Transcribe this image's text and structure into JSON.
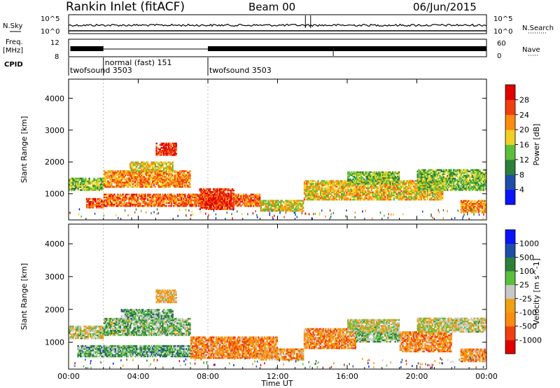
{
  "header": {
    "station": "Rankin Inlet (fitACF)",
    "beam": "Beam 00",
    "date": "06/Jun/2015"
  },
  "top_panels": {
    "nsky_label": "N.Sky",
    "nsky_scale_hi": "10^5",
    "nsky_scale_lo": "10^0",
    "nsearch_label": "N.Search",
    "nsearch_scale_hi": "10^5",
    "nsearch_scale_lo": "10^0",
    "freq_label": "Freq.",
    "freq_unit": "[MHz]",
    "freq_ticks": [
      "12",
      "8"
    ],
    "nave_label": "Nave",
    "nave_ticks": [
      "60",
      "0"
    ],
    "cpid_label": "CPID"
  },
  "cpid": [
    {
      "name": "twofsound 3503",
      "start": "00:00"
    },
    {
      "name": "normal (fast) 151",
      "start": "02:00"
    },
    {
      "name": "twofsound 3503",
      "start": "08:00"
    }
  ],
  "colors": {
    "power": [
      "#0a14ff",
      "#1f4ea8",
      "#2d7f3a",
      "#5bbf3b",
      "#f0d020",
      "#ff8a10",
      "#f04010",
      "#e00000"
    ],
    "velocity": [
      "#e00000",
      "#f04010",
      "#ff8a10",
      "#f0a010",
      "#c8c8c8",
      "#5bbf3b",
      "#2d7f3a",
      "#1f4ea8",
      "#0a14ff"
    ],
    "velocity_gray": "#c8c8c8"
  },
  "chart_data": [
    {
      "type": "heatmap",
      "name": "power",
      "ylabel": "Slant Range [km]",
      "xlabel": "Time UT",
      "xlim": [
        "00:00",
        "24:00"
      ],
      "ylim": [
        180,
        4600
      ],
      "x_ticks": [
        "00:00",
        "04:00",
        "08:00",
        "12:00",
        "16:00",
        "20:00",
        "00:00"
      ],
      "y_ticks": [
        "1000",
        "2000",
        "3000",
        "4000"
      ],
      "colorbar": {
        "label": "Power [dB]",
        "range": [
          0,
          32
        ],
        "ticks": [
          "4",
          "8",
          "12",
          "16",
          "20",
          "24",
          "28"
        ]
      },
      "bands": [
        {
          "t0": 0.0,
          "t1": 2.0,
          "r0": 1100,
          "r1": 1500,
          "level": 0.45
        },
        {
          "t0": 2.0,
          "t1": 7.0,
          "r0": 1200,
          "r1": 1700,
          "level": 0.7
        },
        {
          "t0": 3.5,
          "t1": 6.0,
          "r0": 1700,
          "r1": 2000,
          "level": 0.55
        },
        {
          "t0": 5.0,
          "t1": 6.2,
          "r0": 2200,
          "r1": 2600,
          "level": 0.85
        },
        {
          "t0": 1.0,
          "t1": 2.0,
          "r0": 550,
          "r1": 850,
          "level": 0.8
        },
        {
          "t0": 2.0,
          "t1": 11.0,
          "r0": 600,
          "r1": 1000,
          "level": 0.75
        },
        {
          "t0": 7.5,
          "t1": 9.5,
          "r0": 500,
          "r1": 1150,
          "level": 0.85
        },
        {
          "t0": 11.0,
          "t1": 13.5,
          "r0": 450,
          "r1": 800,
          "level": 0.55
        },
        {
          "t0": 13.5,
          "t1": 21.5,
          "r0": 800,
          "r1": 1400,
          "level": 0.6
        },
        {
          "t0": 16.0,
          "t1": 19.0,
          "r0": 1300,
          "r1": 1700,
          "level": 0.45
        },
        {
          "t0": 20.0,
          "t1": 24.0,
          "r0": 1100,
          "r1": 1750,
          "level": 0.45
        },
        {
          "t0": 22.5,
          "t1": 24.0,
          "r0": 400,
          "r1": 800,
          "level": 0.7
        }
      ]
    },
    {
      "type": "heatmap",
      "name": "velocity",
      "ylabel": "Slant Range [km]",
      "xlabel": "Time UT",
      "xlim": [
        "00:00",
        "24:00"
      ],
      "ylim": [
        180,
        4600
      ],
      "x_ticks": [
        "00:00",
        "04:00",
        "08:00",
        "12:00",
        "16:00",
        "20:00",
        "00:00"
      ],
      "y_ticks": [
        "1000",
        "2000",
        "3000",
        "4000"
      ],
      "colorbar": {
        "label": "Velocity [m s^-1]",
        "ticks": [
          "1000",
          "500",
          "100",
          "25",
          "-25",
          "-100",
          "-500",
          "-1000"
        ]
      },
      "bands": [
        {
          "t0": 0.0,
          "t1": 2.0,
          "r0": 1100,
          "r1": 1500,
          "level": 0.5
        },
        {
          "t0": 2.0,
          "t1": 7.0,
          "r0": 1200,
          "r1": 1700,
          "level": 0.6
        },
        {
          "t0": 3.0,
          "t1": 6.0,
          "r0": 1700,
          "r1": 2000,
          "level": 0.62
        },
        {
          "t0": 5.0,
          "t1": 6.2,
          "r0": 2200,
          "r1": 2600,
          "level": 0.4
        },
        {
          "t0": 0.5,
          "t1": 7.0,
          "r0": 550,
          "r1": 900,
          "level": 0.66
        },
        {
          "t0": 7.0,
          "t1": 12.0,
          "r0": 500,
          "r1": 1150,
          "level": 0.3
        },
        {
          "t0": 11.0,
          "t1": 13.5,
          "r0": 450,
          "r1": 800,
          "level": 0.33
        },
        {
          "t0": 13.5,
          "t1": 16.5,
          "r0": 800,
          "r1": 1400,
          "level": 0.3
        },
        {
          "t0": 16.5,
          "t1": 19.0,
          "r0": 1000,
          "r1": 1400,
          "level": 0.6
        },
        {
          "t0": 16.0,
          "t1": 19.0,
          "r0": 1300,
          "r1": 1700,
          "level": 0.5
        },
        {
          "t0": 19.0,
          "t1": 22.0,
          "r0": 700,
          "r1": 1300,
          "level": 0.3
        },
        {
          "t0": 20.0,
          "t1": 24.0,
          "r0": 1300,
          "r1": 1750,
          "level": 0.5
        },
        {
          "t0": 22.5,
          "t1": 24.0,
          "r0": 400,
          "r1": 800,
          "level": 0.32
        }
      ]
    }
  ]
}
